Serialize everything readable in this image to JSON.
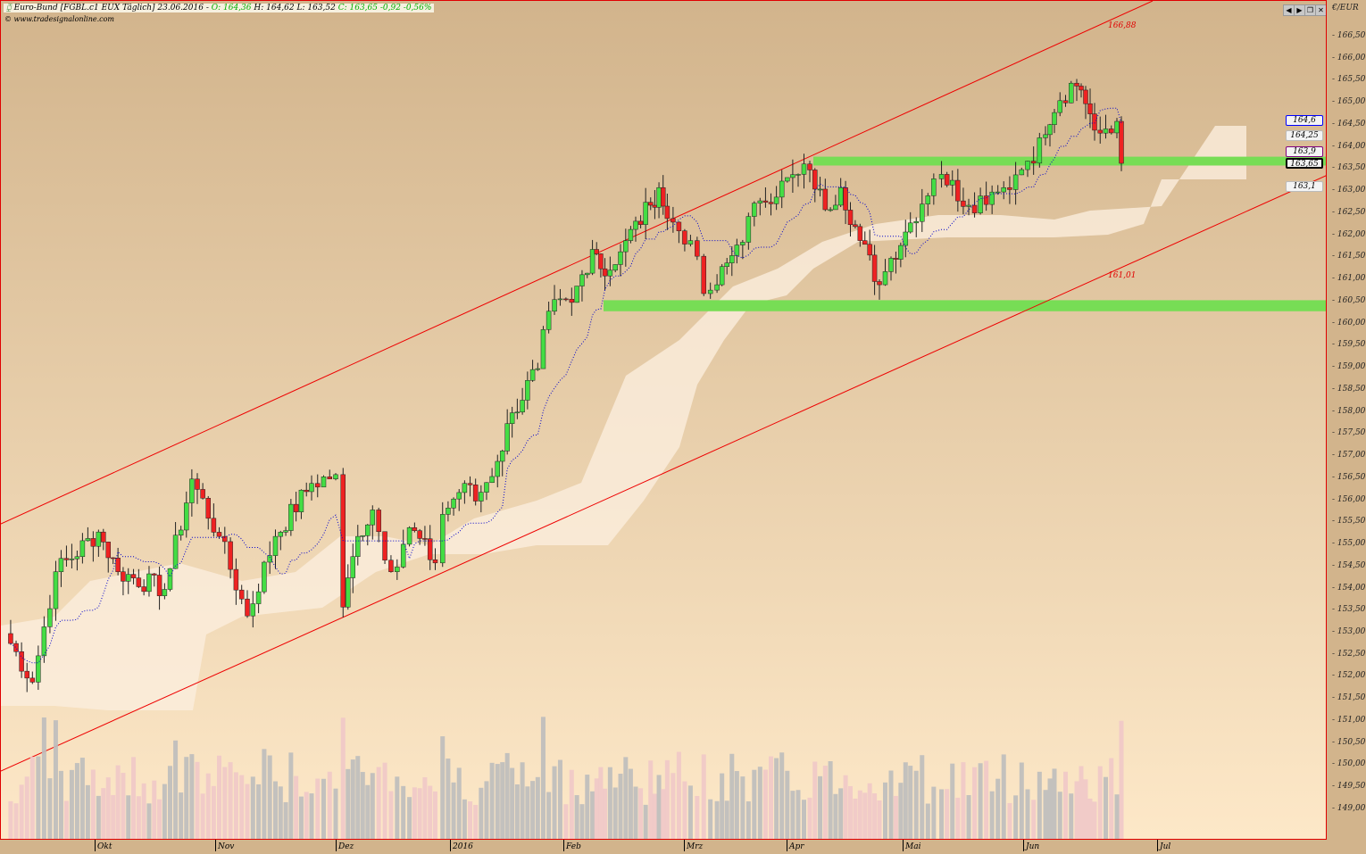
{
  "header": {
    "instrument": "Euro-Bund [FGBL.c1 EUX Täglich] 23.06.2016 -",
    "ohlc_open": "O: 164,36",
    "ohlc_hl": "H: 164,62 L: 163,52",
    "ohlc_close": "C: 163,65 -0,92 -0,56%",
    "source": "www.tradesignalonline.com"
  },
  "toolbar": {
    "prev": "◀",
    "next": "▶",
    "restore": "❐",
    "close": "✕"
  },
  "axis": {
    "unit": "€/EUR"
  },
  "price_tags": [
    {
      "label": "164,6",
      "color": "#0000ff"
    },
    {
      "label": "164,25",
      "color": "#bbbbbb"
    },
    {
      "label": "163,9",
      "color": "#800080"
    },
    {
      "label": "163,65",
      "color": "#000000"
    },
    {
      "label": "163,1",
      "color": "#bbbbbb"
    }
  ],
  "channel_labels": {
    "upper": "166,88",
    "lower": "161,01"
  },
  "colors": {
    "up": "#44dd44",
    "down": "#ee2222",
    "channel": "#ee0000",
    "zone": "#77dd55",
    "cloud": "#fbeedd",
    "volume_up": "#bdbdbd",
    "volume_down": "#f0c8c8"
  },
  "chart_data": {
    "type": "candlestick",
    "title": "Euro-Bund [FGBL.c1 EUX Täglich]",
    "ylim": [
      148.75,
      166.9
    ],
    "yticks": [
      "166,50",
      "166,00",
      "165,50",
      "165,00",
      "164,50",
      "164,00",
      "163,50",
      "163,00",
      "162,50",
      "162,00",
      "161,50",
      "161,00",
      "160,50",
      "160,00",
      "159,50",
      "159,00",
      "158,50",
      "158,00",
      "157,50",
      "157,00",
      "156,50",
      "156,00",
      "155,50",
      "155,00",
      "154,50",
      "154,00",
      "153,50",
      "153,00",
      "152,50",
      "152,00",
      "151,50",
      "151,00",
      "150,50",
      "150,00",
      "149,50",
      "149,00"
    ],
    "xticks": [
      "Okt",
      "Nov",
      "Dez",
      "2016",
      "Feb",
      "Mrz",
      "Apr",
      "Mai",
      "Jun",
      "Jul"
    ],
    "closes": [
      [
        "2015-09-08",
        153.0
      ],
      [
        "2015-09-15",
        151.9
      ],
      [
        "2015-09-21",
        154.4
      ],
      [
        "2015-10-02",
        155.3
      ],
      [
        "2015-10-07",
        154.4
      ],
      [
        "2015-10-19",
        154.0
      ],
      [
        "2015-10-26",
        156.5
      ],
      [
        "2015-11-02",
        155.2
      ],
      [
        "2015-11-09",
        153.4
      ],
      [
        "2015-11-16",
        155.2
      ],
      [
        "2015-11-25",
        156.4
      ],
      [
        "2015-12-01",
        156.6
      ],
      [
        "2015-12-03",
        153.6
      ],
      [
        "2015-12-07",
        155.2
      ],
      [
        "2015-12-11",
        155.8
      ],
      [
        "2015-12-16",
        154.4
      ],
      [
        "2015-12-21",
        155.4
      ],
      [
        "2015-12-28",
        154.6
      ],
      [
        "2015-12-30",
        155.7
      ],
      [
        "2016-01-05",
        156.4
      ],
      [
        "2016-01-08",
        156.0
      ],
      [
        "2016-01-14",
        156.9
      ],
      [
        "2016-01-18",
        158.0
      ],
      [
        "2016-01-25",
        159.0
      ],
      [
        "2016-01-28",
        160.3
      ],
      [
        "2016-02-03",
        160.5
      ],
      [
        "2016-02-08",
        161.7
      ],
      [
        "2016-02-09",
        161.6
      ],
      [
        "2016-02-11",
        161.1
      ],
      [
        "2016-02-16",
        161.9
      ],
      [
        "2016-02-22",
        162.7
      ],
      [
        "2016-02-24",
        163.1
      ],
      [
        "2016-02-26",
        162.4
      ],
      [
        "2016-03-03",
        161.9
      ],
      [
        "2016-03-07",
        160.7
      ],
      [
        "2016-03-11",
        160.9
      ],
      [
        "2016-03-17",
        161.8
      ],
      [
        "2016-03-24",
        162.8
      ],
      [
        "2016-04-04",
        163.4
      ],
      [
        "2016-04-07",
        163.5
      ],
      [
        "2016-04-11",
        162.6
      ],
      [
        "2016-04-15",
        163.1
      ],
      [
        "2016-04-20",
        161.9
      ],
      [
        "2016-04-25",
        160.9
      ],
      [
        "2016-04-28",
        161.5
      ],
      [
        "2016-05-03",
        162.3
      ],
      [
        "2016-05-09",
        163.3
      ],
      [
        "2016-05-11",
        163.4
      ],
      [
        "2016-05-18",
        162.7
      ],
      [
        "2016-05-24",
        163.0
      ],
      [
        "2016-05-27",
        163.1
      ],
      [
        "2016-06-02",
        163.7
      ],
      [
        "2016-06-06",
        164.3
      ],
      [
        "2016-06-08",
        164.8
      ],
      [
        "2016-06-13",
        165.4
      ],
      [
        "2016-06-15",
        165.0
      ],
      [
        "2016-06-17",
        164.4
      ],
      [
        "2016-06-22",
        164.6
      ],
      [
        "2016-06-23",
        163.65
      ]
    ],
    "channel": {
      "upper_end": 166.88,
      "lower_end": 161.01
    },
    "support_zones": [
      [
        163.6,
        163.8
      ],
      [
        160.3,
        160.55
      ]
    ]
  }
}
